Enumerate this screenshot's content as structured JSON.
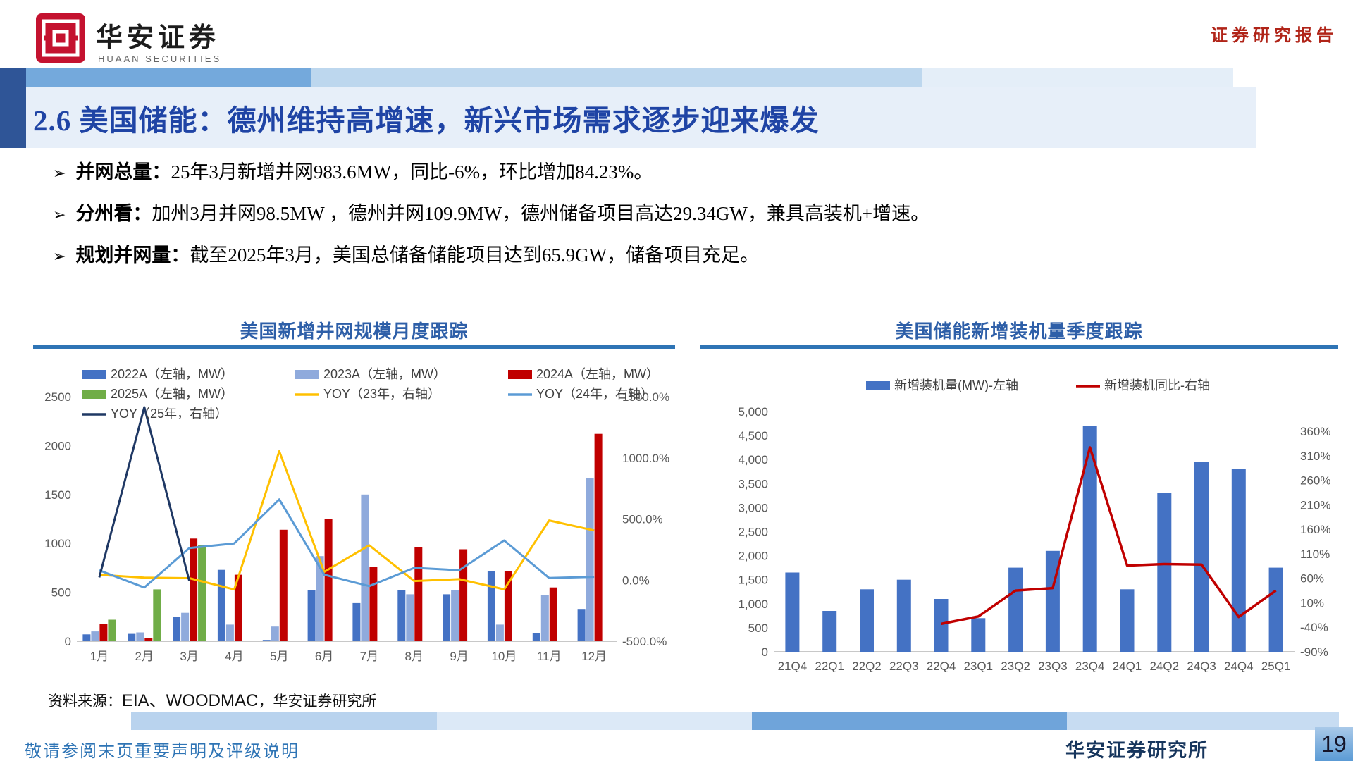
{
  "header": {
    "logo_cn": "华安证券",
    "logo_en": "HUAAN SECURITIES",
    "report_type": "证券研究报告"
  },
  "title": "2.6 美国储能：德州维持高增速，新兴市场需求逐步迎来爆发",
  "bullet_marker": "➢",
  "bullets": [
    {
      "label": "并网总量：",
      "text": "25年3月新增并网983.6MW，同比-6%，环比增加84.23%。"
    },
    {
      "label": "分州看：",
      "text": "加州3月并网98.5MW ，德州并网109.9MW，德州储备项目高达29.34GW，兼具高装机+增速。"
    },
    {
      "label": "规划并网量：",
      "text": "截至2025年3月，美国总储备储能项目达到65.9GW，储备项目充足。"
    }
  ],
  "source_note": {
    "prefix": "资料来源：",
    "sources": "EIA、WOODMAC",
    "suffix": "，华安证券研究所"
  },
  "footer": {
    "disclaimer": "敬请参阅末页重要声明及评级说明",
    "institute": "华安证券研究所",
    "page_number": "19"
  },
  "colors": {
    "title_blue": "#1f44a5",
    "accent_blue": "#2e74b5",
    "band_dark": "#2f5597",
    "report_red": "#b02418",
    "bar_2022": "#4472c4",
    "bar_2023": "#8faadc",
    "bar_2024": "#c00000",
    "bar_2025": "#70ad47",
    "line_yoy23": "#ffc000",
    "line_yoy24": "#5b9bd5",
    "line_yoy25": "#1f3864",
    "quarterly_bar": "#4472c4",
    "quarterly_line": "#c00000"
  },
  "chart_data": [
    {
      "type": "bar",
      "title": "美国新增并网规模月度跟踪",
      "categories": [
        "1月",
        "2月",
        "3月",
        "4月",
        "5月",
        "6月",
        "7月",
        "8月",
        "9月",
        "10月",
        "11月",
        "12月"
      ],
      "bar_series": [
        {
          "name": "2022A（左轴，MW）",
          "color": "#4472c4",
          "values": [
            70,
            75,
            250,
            730,
            13,
            520,
            390,
            520,
            480,
            720,
            80,
            330
          ]
        },
        {
          "name": "2023A（左轴，MW）",
          "color": "#8faadc",
          "values": [
            100,
            90,
            290,
            170,
            150,
            870,
            1500,
            480,
            520,
            170,
            470,
            1670
          ]
        },
        {
          "name": "2024A（左轴，MW）",
          "color": "#c00000",
          "values": [
            180,
            35,
            1050,
            680,
            1140,
            1250,
            760,
            960,
            940,
            720,
            550,
            2120
          ]
        },
        {
          "name": "2025A（左轴，MW）",
          "color": "#70ad47",
          "values": [
            220,
            530,
            984,
            null,
            null,
            null,
            null,
            null,
            null,
            null,
            null,
            null
          ]
        }
      ],
      "line_series": [
        {
          "name": "YOY（23年，右轴）",
          "color": "#ffc000",
          "values": [
            43,
            20,
            16,
            -77,
            1054,
            67,
            285,
            -8,
            8,
            -76,
            488,
            406
          ]
        },
        {
          "name": "YOY（24年，右轴）",
          "color": "#5b9bd5",
          "values": [
            80,
            -61,
            262,
            300,
            660,
            44,
            -49,
            100,
            81,
            324,
            17,
            27
          ]
        },
        {
          "name": "YOY（25年，右轴）",
          "color": "#1f3864",
          "values": [
            22,
            1414,
            -6,
            null,
            null,
            null,
            null,
            null,
            null,
            null,
            null,
            null
          ]
        }
      ],
      "left_axis": {
        "min": 0,
        "max": 2500,
        "ticks": [
          "0",
          "500",
          "1000",
          "1500",
          "2000",
          "2500"
        ],
        "unit": "MW"
      },
      "right_axis": {
        "min": -500,
        "max": 1500,
        "ticks": [
          "-500.0%",
          "0.0%",
          "500.0%",
          "1000.0%",
          "1500.0%"
        ],
        "unit": "%"
      },
      "grid": false,
      "legend_position": "top-left"
    },
    {
      "type": "bar",
      "title": "美国储能新增装机量季度跟踪",
      "categories": [
        "21Q4",
        "22Q1",
        "22Q2",
        "22Q3",
        "22Q4",
        "23Q1",
        "23Q2",
        "23Q3",
        "23Q4",
        "24Q1",
        "24Q2",
        "24Q3",
        "24Q4",
        "25Q1"
      ],
      "bar_series": [
        {
          "name": "新增装机量(MW)-左轴",
          "color": "#4472c4",
          "values": [
            1650,
            850,
            1300,
            1500,
            1100,
            700,
            1750,
            2100,
            4700,
            1300,
            3300,
            3950,
            3800,
            1750
          ]
        }
      ],
      "line_series": [
        {
          "name": "新增装机同比-右轴",
          "color": "#c00000",
          "values": [
            null,
            null,
            null,
            null,
            -33,
            -18,
            35,
            40,
            327,
            86,
            89,
            88,
            -19,
            35
          ]
        }
      ],
      "left_axis": {
        "min": 0,
        "max": 5000,
        "ticks": [
          "0",
          "500",
          "1,000",
          "1,500",
          "2,000",
          "2,500",
          "3,000",
          "3,500",
          "4,000",
          "4,500",
          "5,000"
        ],
        "unit": "MW"
      },
      "right_axis": {
        "min": -90,
        "max": 360,
        "ticks": [
          "-90%",
          "-40%",
          "10%",
          "60%",
          "110%",
          "160%",
          "210%",
          "260%",
          "310%",
          "360%"
        ],
        "unit": "%"
      },
      "grid": false,
      "legend_position": "top-center"
    }
  ]
}
